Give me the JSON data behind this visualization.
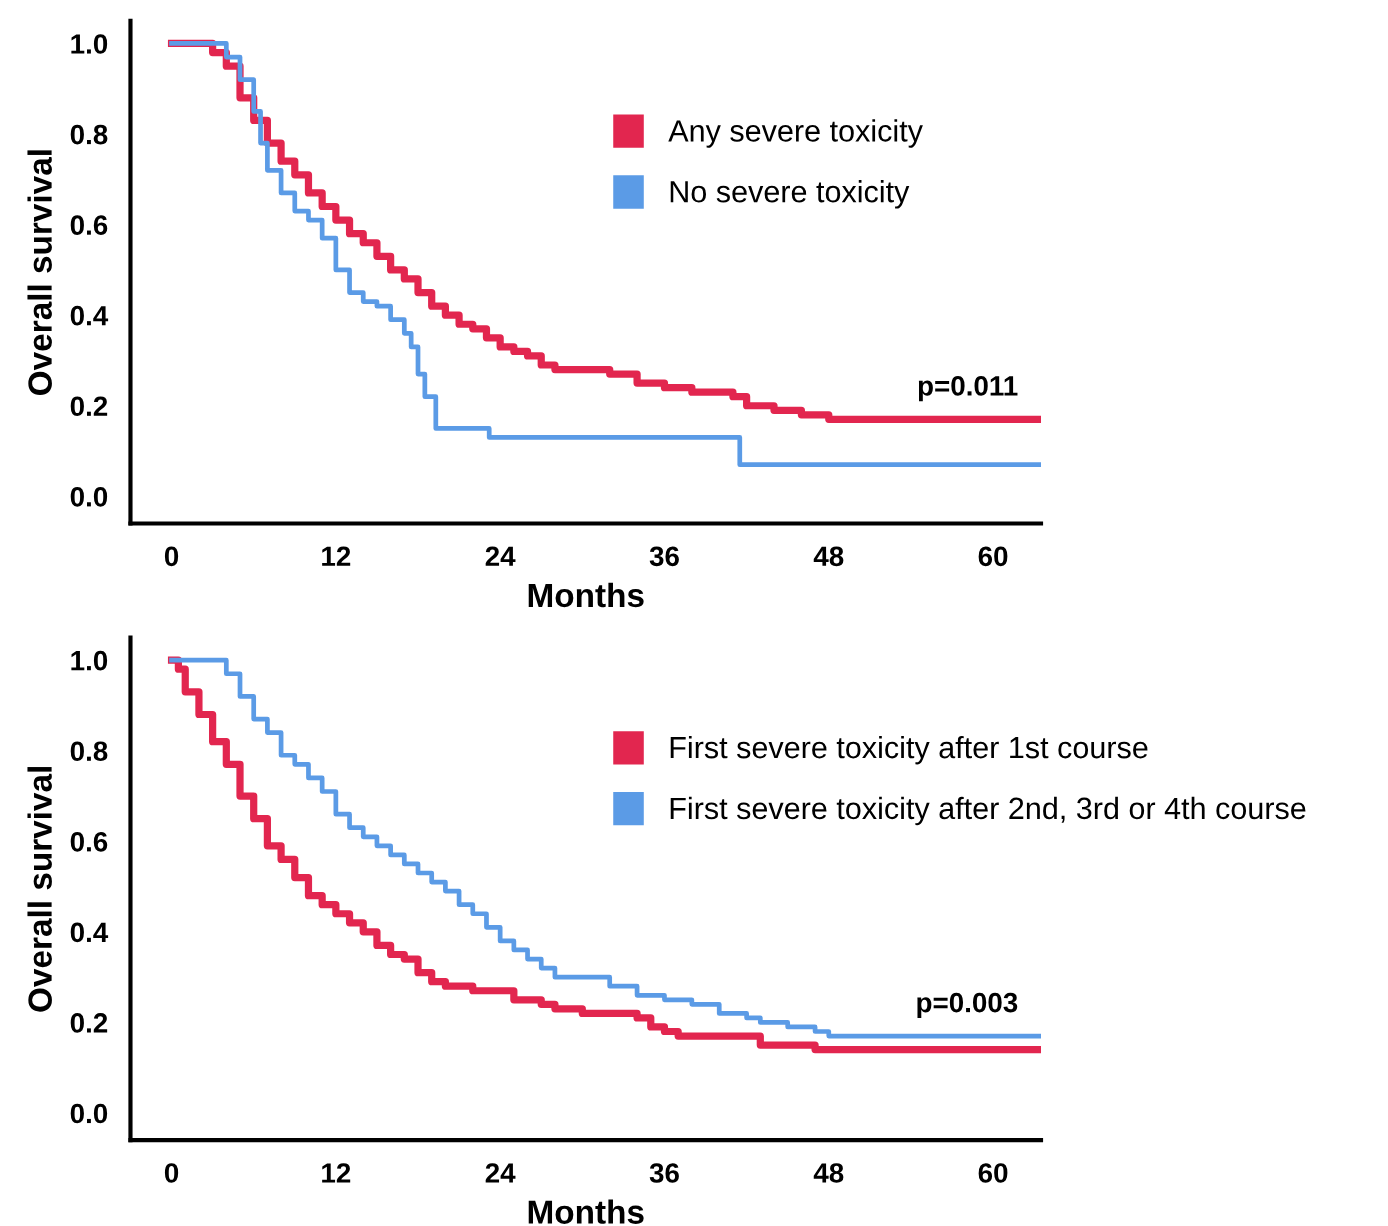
{
  "chart_data": [
    {
      "type": "step",
      "xlabel": "Months",
      "ylabel": "Overall survival",
      "xlim": [
        -3,
        63.5
      ],
      "ylim": [
        -0.06,
        1.05
      ],
      "xticks": [
        0,
        12,
        24,
        36,
        48,
        60
      ],
      "yticks": [
        {
          "value": 0,
          "label": "0.0"
        },
        {
          "value": 0.2,
          "label": "0.2"
        },
        {
          "value": 0.4,
          "label": "0.4"
        },
        {
          "value": 0.6,
          "label": "0.6"
        },
        {
          "value": 0.8,
          "label": "0.8"
        },
        {
          "value": 1,
          "label": "1.0"
        }
      ],
      "grid": false,
      "legend": "right",
      "annotations": [
        "p=0.011"
      ],
      "series": [
        {
          "name": "Any severe toxicity",
          "color": "#e2264f",
          "x": [
            0,
            2.5,
            3,
            4,
            5,
            6,
            7,
            8,
            9,
            10,
            11,
            12,
            13,
            14,
            15,
            16,
            17,
            18,
            19,
            20,
            21,
            22,
            23,
            24,
            25,
            26,
            27,
            28,
            30,
            32,
            34,
            36,
            38,
            41,
            42,
            44,
            46,
            48,
            63.5
          ],
          "values": [
            1.0,
            1.0,
            0.98,
            0.95,
            0.88,
            0.83,
            0.78,
            0.74,
            0.71,
            0.67,
            0.64,
            0.61,
            0.58,
            0.56,
            0.53,
            0.5,
            0.48,
            0.45,
            0.42,
            0.4,
            0.38,
            0.37,
            0.35,
            0.33,
            0.32,
            0.31,
            0.29,
            0.28,
            0.28,
            0.27,
            0.25,
            0.24,
            0.23,
            0.22,
            0.2,
            0.19,
            0.18,
            0.17,
            0.17
          ]
        },
        {
          "name": "No severe toxicity",
          "color": "#5b9be6",
          "x": [
            0,
            3,
            4,
            5,
            6,
            6.5,
            7,
            8,
            9,
            10,
            11,
            12,
            13,
            14,
            15,
            16,
            17,
            17.5,
            18,
            18.5,
            19.3,
            23.2,
            41.5,
            63.5
          ],
          "values": [
            1.0,
            1.0,
            0.97,
            0.92,
            0.85,
            0.78,
            0.72,
            0.67,
            0.63,
            0.61,
            0.57,
            0.5,
            0.45,
            0.43,
            0.42,
            0.39,
            0.36,
            0.33,
            0.27,
            0.22,
            0.15,
            0.13,
            0.07,
            0.07
          ]
        }
      ]
    },
    {
      "type": "step",
      "xlabel": "Months",
      "ylabel": "Overall survival",
      "xlim": [
        -3,
        63.5
      ],
      "ylim": [
        -0.06,
        1.05
      ],
      "xticks": [
        0,
        12,
        24,
        36,
        48,
        60
      ],
      "yticks": [
        {
          "value": 0,
          "label": "0.0"
        },
        {
          "value": 0.2,
          "label": "0.2"
        },
        {
          "value": 0.4,
          "label": "0.4"
        },
        {
          "value": 0.6,
          "label": "0.6"
        },
        {
          "value": 0.8,
          "label": "0.8"
        },
        {
          "value": 1,
          "label": "1.0"
        }
      ],
      "grid": false,
      "legend": "right",
      "annotations": [
        "p=0.003"
      ],
      "series": [
        {
          "name": "First severe toxicity after 1st course",
          "color": "#e2264f",
          "x": [
            0,
            0.5,
            1,
            2,
            3,
            4,
            5,
            6,
            7,
            8,
            9,
            10,
            11,
            12,
            13,
            14,
            15,
            16,
            17,
            18,
            19,
            20,
            22,
            25,
            27,
            28,
            30,
            34,
            35,
            36,
            37,
            43,
            47,
            63.5
          ],
          "values": [
            1.0,
            0.98,
            0.93,
            0.88,
            0.82,
            0.77,
            0.7,
            0.65,
            0.59,
            0.56,
            0.52,
            0.48,
            0.46,
            0.44,
            0.42,
            0.4,
            0.37,
            0.35,
            0.34,
            0.31,
            0.29,
            0.28,
            0.27,
            0.25,
            0.24,
            0.23,
            0.22,
            0.21,
            0.19,
            0.18,
            0.17,
            0.15,
            0.14,
            0.14
          ]
        },
        {
          "name": "First severe toxicity after 2nd, 3rd or 4th course",
          "color": "#5b9be6",
          "x": [
            0,
            3,
            4,
            5,
            6,
            7,
            8,
            9,
            10,
            11,
            12,
            13,
            14,
            15,
            16,
            17,
            18,
            19,
            20,
            21,
            22,
            23,
            24,
            25,
            26,
            27,
            28,
            32,
            34,
            36,
            38,
            40,
            42,
            43,
            45,
            47,
            48,
            63.5
          ],
          "values": [
            1.0,
            1.0,
            0.97,
            0.92,
            0.87,
            0.84,
            0.79,
            0.77,
            0.74,
            0.71,
            0.66,
            0.63,
            0.61,
            0.59,
            0.57,
            0.55,
            0.53,
            0.51,
            0.49,
            0.46,
            0.44,
            0.41,
            0.38,
            0.36,
            0.34,
            0.32,
            0.3,
            0.28,
            0.26,
            0.25,
            0.24,
            0.22,
            0.21,
            0.2,
            0.19,
            0.18,
            0.17,
            0.17
          ]
        }
      ]
    }
  ]
}
